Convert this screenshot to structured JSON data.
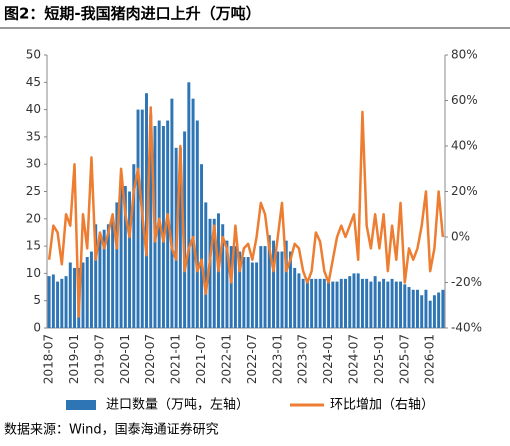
{
  "chart_data": {
    "type": "bar_line",
    "title": "图2：短期-我国猪肉进口上升（万吨）",
    "source": "数据来源：Wind，国泰海通证券研究",
    "categories": [
      "2018-07",
      null,
      null,
      null,
      null,
      null,
      "2019-01",
      null,
      null,
      null,
      null,
      null,
      "2019-07",
      null,
      null,
      null,
      null,
      null,
      "2020-01",
      null,
      null,
      null,
      null,
      null,
      "2020-07",
      null,
      null,
      null,
      null,
      null,
      "2021-01",
      null,
      null,
      null,
      null,
      null,
      "2021-07",
      null,
      null,
      null,
      null,
      null,
      "2022-01",
      null,
      null,
      null,
      null,
      null,
      "2022-07",
      null,
      null,
      null,
      null,
      null,
      "2023-01",
      null,
      null,
      null,
      null,
      null,
      "2023-07",
      null,
      null,
      null,
      null,
      null,
      "2024-01",
      null,
      null,
      null,
      null,
      null,
      "2024-07",
      null,
      null,
      null,
      null,
      null,
      "2025-01",
      null,
      null,
      null,
      null,
      null,
      "2025-07",
      null,
      null,
      null,
      null,
      null,
      "2026-01",
      null,
      null,
      null
    ],
    "series": [
      {
        "name": "进口数量（万吨，左轴）",
        "color": "#2e75b6",
        "axis": "y",
        "values": [
          9.5,
          9.8,
          8.5,
          9,
          9.5,
          12,
          11,
          11,
          12,
          13,
          14,
          19,
          17,
          18,
          19,
          20,
          23,
          27,
          26,
          25,
          30,
          40,
          40,
          43,
          39,
          37,
          38,
          37,
          38,
          42,
          33,
          33,
          36,
          45,
          42,
          38,
          30,
          23,
          20,
          20,
          21,
          19,
          16,
          15,
          15,
          14,
          13,
          13,
          12,
          12,
          15,
          15,
          17,
          16,
          14,
          14,
          16,
          14,
          11,
          10,
          9,
          9,
          9,
          9,
          9,
          9,
          8.5,
          8.5,
          8.5,
          9,
          9,
          9.5,
          10,
          10,
          9,
          9,
          8.5,
          9.5,
          8.5,
          9,
          8.5,
          9,
          8.5,
          8.5,
          8,
          7.5,
          7,
          7,
          6,
          7,
          5,
          6,
          6.5,
          7
        ]
      },
      {
        "name": "环比增加（右轴）",
        "color": "#ed7d31",
        "axis": "y2",
        "values": [
          -10,
          5,
          2,
          -12,
          10,
          5,
          32,
          -35,
          10,
          -5,
          35,
          -10,
          2,
          -5,
          2,
          10,
          -5,
          30,
          10,
          0,
          20,
          30,
          10,
          -8,
          57,
          -2,
          8,
          -2,
          10,
          -5,
          -10,
          40,
          -15,
          -5,
          0,
          -15,
          -10,
          -25,
          -10,
          5,
          -15,
          0,
          -5,
          -20,
          5,
          -15,
          -5,
          -3,
          -10,
          0,
          15,
          10,
          -5,
          -15,
          0,
          15,
          -15,
          -10,
          -3,
          -5,
          -15,
          -20,
          -15,
          2,
          -2,
          -15,
          -20,
          -10,
          0,
          5,
          0,
          5,
          10,
          -10,
          55,
          5,
          -5,
          10,
          -5,
          10,
          -15,
          5,
          -10,
          15,
          -20,
          -5,
          -10,
          -5,
          5,
          20,
          -15,
          -5,
          20,
          0
        ]
      }
    ],
    "ylim": [
      0,
      50
    ],
    "yticks": [
      0,
      5,
      10,
      15,
      20,
      25,
      30,
      35,
      40,
      45,
      50
    ],
    "y2lim": [
      -40,
      80
    ],
    "y2ticks": [
      {
        "value": -40,
        "label": "-40%"
      },
      {
        "value": -20,
        "label": "-20%"
      },
      {
        "value": 0,
        "label": "0%"
      },
      {
        "value": 20,
        "label": "20%"
      },
      {
        "value": 40,
        "label": "40%"
      },
      {
        "value": 60,
        "label": "60%"
      },
      {
        "value": 80,
        "label": "80%"
      }
    ],
    "grid": false
  }
}
